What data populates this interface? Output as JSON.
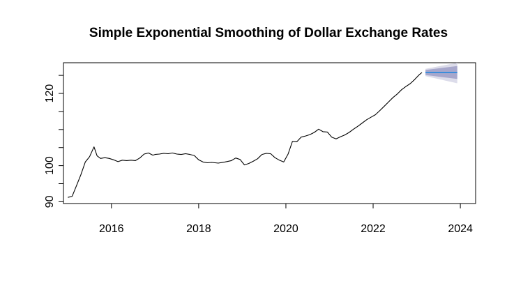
{
  "chart_data": {
    "type": "line",
    "title": "Simple Exponential Smoothing of Dollar Exchange Rates",
    "xlabel": "",
    "ylabel": "",
    "xlim": [
      2014.9,
      2024.35
    ],
    "ylim": [
      89.5,
      128.5
    ],
    "x_ticks": [
      2016,
      2018,
      2020,
      2022,
      2024
    ],
    "x_tick_labels": [
      "2016",
      "2018",
      "2020",
      "2022",
      "2024"
    ],
    "y_ticks": [
      90,
      95,
      100,
      105,
      110,
      115,
      120,
      125
    ],
    "y_tick_labels": [
      "90",
      "",
      "100",
      "",
      "",
      "",
      "120",
      ""
    ],
    "colors": {
      "observed": "#000000",
      "forecast": "#3b8ddb",
      "band80": "#a7a7cc",
      "band95": "#dcdcea"
    },
    "series": [
      {
        "name": "observed",
        "x": [
          2015.0,
          2015.1,
          2015.2,
          2015.3,
          2015.4,
          2015.5,
          2015.6,
          2015.67,
          2015.75,
          2015.85,
          2015.95,
          2016.05,
          2016.15,
          2016.25,
          2016.35,
          2016.45,
          2016.55,
          2016.65,
          2016.75,
          2016.85,
          2016.95,
          2017.0,
          2017.1,
          2017.2,
          2017.3,
          2017.4,
          2017.5,
          2017.6,
          2017.7,
          2017.8,
          2017.9,
          2018.0,
          2018.1,
          2018.2,
          2018.3,
          2018.45,
          2018.6,
          2018.75,
          2018.85,
          2018.95,
          2019.05,
          2019.15,
          2019.25,
          2019.35,
          2019.45,
          2019.55,
          2019.65,
          2019.75,
          2019.85,
          2019.95,
          2020.05,
          2020.15,
          2020.25,
          2020.35,
          2020.45,
          2020.55,
          2020.65,
          2020.75,
          2020.85,
          2020.95,
          2021.05,
          2021.15,
          2021.25,
          2021.35,
          2021.45,
          2021.55,
          2021.65,
          2021.75,
          2021.85,
          2021.95,
          2022.05,
          2022.15,
          2022.25,
          2022.35,
          2022.45,
          2022.55,
          2022.65,
          2022.75,
          2022.85,
          2022.95,
          2023.05,
          2023.12
        ],
        "values": [
          91.2,
          91.5,
          94.5,
          97.5,
          101.0,
          102.5,
          105.2,
          102.7,
          102.0,
          102.2,
          102.0,
          101.6,
          101.1,
          101.5,
          101.4,
          101.5,
          101.4,
          102.1,
          103.2,
          103.5,
          102.9,
          103.1,
          103.2,
          103.4,
          103.3,
          103.5,
          103.2,
          103.1,
          103.3,
          103.1,
          102.8,
          101.6,
          101.0,
          100.8,
          100.9,
          100.7,
          101.0,
          101.4,
          102.1,
          101.7,
          100.2,
          100.6,
          101.2,
          101.9,
          103.1,
          103.4,
          103.3,
          102.2,
          101.5,
          101.0,
          103.2,
          106.7,
          106.6,
          107.9,
          108.2,
          108.6,
          109.2,
          110.1,
          109.4,
          109.3,
          107.9,
          107.4,
          108.0,
          108.5,
          109.2,
          110.1,
          110.9,
          111.8,
          112.7,
          113.4,
          114.1,
          115.2,
          116.4,
          117.6,
          118.8,
          119.8,
          121.0,
          121.9,
          122.7,
          123.8,
          125.1,
          125.8
        ]
      },
      {
        "name": "forecast",
        "x": [
          2023.2,
          2023.93
        ],
        "values": [
          125.8,
          125.8
        ]
      }
    ],
    "bands": [
      {
        "name": "95% interval",
        "x": [
          2023.2,
          2023.93
        ],
        "lower": [
          124.8,
          122.8
        ],
        "upper": [
          126.8,
          128.5
        ]
      },
      {
        "name": "80% interval",
        "x": [
          2023.2,
          2023.93
        ],
        "lower": [
          125.1,
          124.0
        ],
        "upper": [
          126.5,
          127.6
        ]
      }
    ]
  }
}
